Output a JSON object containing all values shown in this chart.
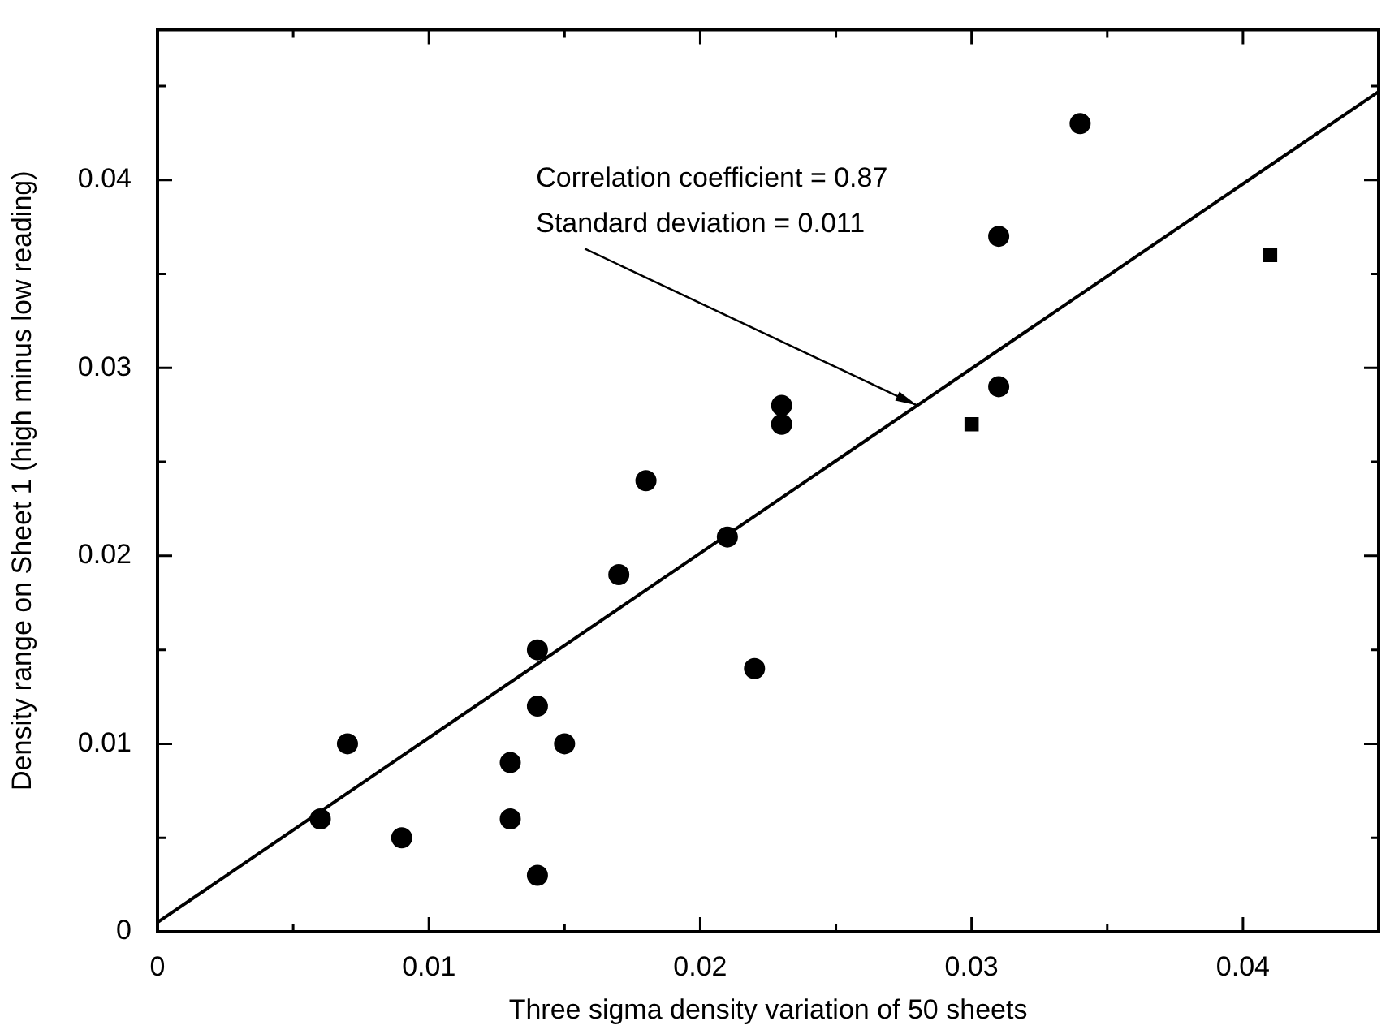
{
  "chart_data": {
    "type": "scatter",
    "xlabel": "Three sigma density variation of 50 sheets",
    "ylabel": "Density range on Sheet 1 (high minus low reading)",
    "xlim": [
      0,
      0.045
    ],
    "ylim": [
      0,
      0.048
    ],
    "xticks": [
      0,
      {
        "value": 0.005,
        "label": null
      },
      0.01,
      {
        "value": 0.015,
        "label": null
      },
      0.02,
      {
        "value": 0.025,
        "label": null
      },
      0.03,
      {
        "value": 0.035,
        "label": null
      },
      0.04,
      {
        "value": 0.045,
        "label": null
      }
    ],
    "yticks": [
      0,
      {
        "value": 0.005,
        "label": null
      },
      0.01,
      {
        "value": 0.015,
        "label": null
      },
      0.02,
      {
        "value": 0.025,
        "label": null
      },
      0.03,
      {
        "value": 0.035,
        "label": null
      },
      0.04,
      {
        "value": 0.045,
        "label": null
      }
    ],
    "series": [
      {
        "marker": "circle",
        "color": "#000000",
        "x": [
          0.006,
          0.007,
          0.009,
          0.013,
          0.013,
          0.014,
          0.014,
          0.014,
          0.015,
          0.017,
          0.018,
          0.021,
          0.022,
          0.023,
          0.023,
          0.031,
          0.031,
          0.034
        ],
        "values": [
          0.006,
          0.01,
          0.005,
          0.009,
          0.006,
          0.015,
          0.012,
          0.003,
          0.01,
          0.019,
          0.024,
          0.021,
          0.014,
          0.028,
          0.027,
          0.029,
          0.037,
          0.043
        ]
      },
      {
        "marker": "square",
        "color": "#000000",
        "x": [
          0.03,
          0.041
        ],
        "values": [
          0.027,
          0.036
        ]
      },
      {
        "type": "line",
        "marker": "none",
        "color": "#000000",
        "x": [
          0,
          0.045
        ],
        "values": [
          0.0005,
          0.0447
        ]
      }
    ],
    "annotations": [
      "Correlation coefficient = 0.87",
      {
        "text": "Standard deviation = 0.011",
        "x": 0.028,
        "y": 0.028
      }
    ]
  }
}
